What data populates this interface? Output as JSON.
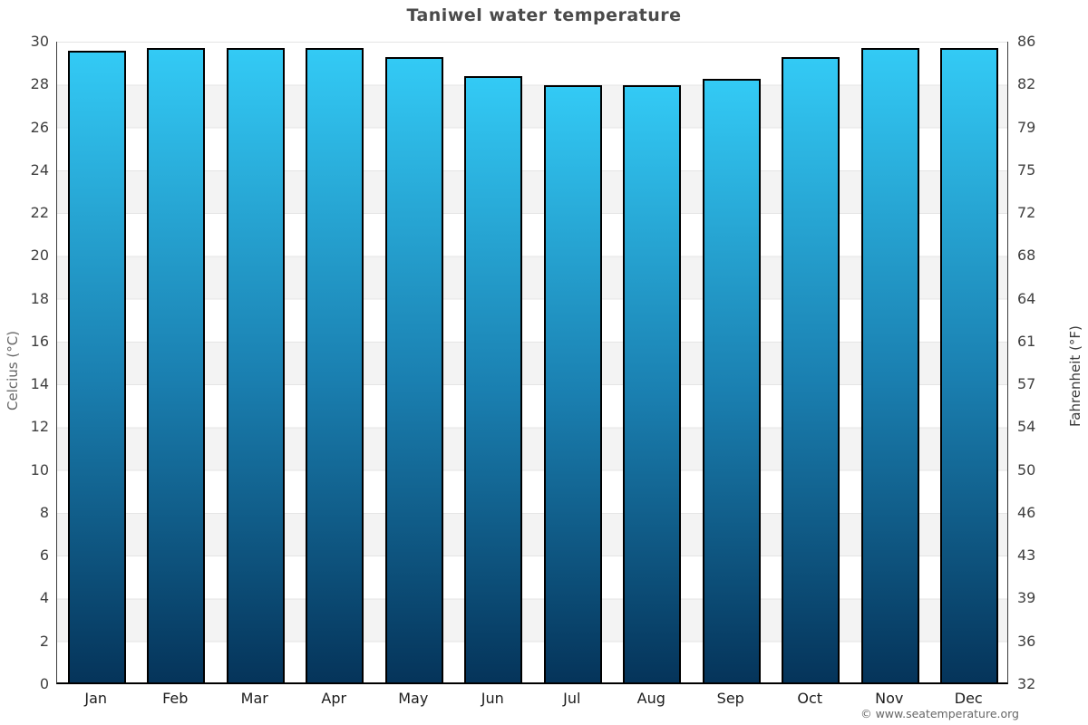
{
  "chart_data": {
    "type": "bar",
    "title": "Taniwel water temperature",
    "categories": [
      "Jan",
      "Feb",
      "Mar",
      "Apr",
      "May",
      "Jun",
      "Jul",
      "Aug",
      "Sep",
      "Oct",
      "Nov",
      "Dec"
    ],
    "values": [
      29.5,
      29.6,
      29.6,
      29.6,
      29.2,
      28.3,
      27.9,
      27.9,
      28.2,
      29.2,
      29.6,
      29.6
    ],
    "unit": "°C",
    "ylabel_left": "Celcius (°C)",
    "ylabel_right": "Fahrenheit (°F)",
    "ylim": [
      0,
      30
    ],
    "yticks_celsius": [
      0,
      2,
      4,
      6,
      8,
      10,
      12,
      14,
      16,
      18,
      20,
      22,
      24,
      26,
      28,
      30
    ],
    "yticks_fahrenheit": [
      32,
      36,
      39,
      43,
      46,
      50,
      54,
      57,
      61,
      64,
      68,
      72,
      75,
      79,
      82,
      86
    ],
    "grid": "horizontal alternating bands every 2°C, white and light gray",
    "legend": "none",
    "colors": {
      "bar_gradient_top": "#33caf5",
      "bar_gradient_mid": "#1a7fb0",
      "bar_gradient_bottom": "#05345a",
      "bar_border": "#000000",
      "band_gray": "#f3f3f3",
      "title_text": "#4a4a4a"
    }
  },
  "footer": {
    "credit": "© www.seatemperature.org"
  }
}
